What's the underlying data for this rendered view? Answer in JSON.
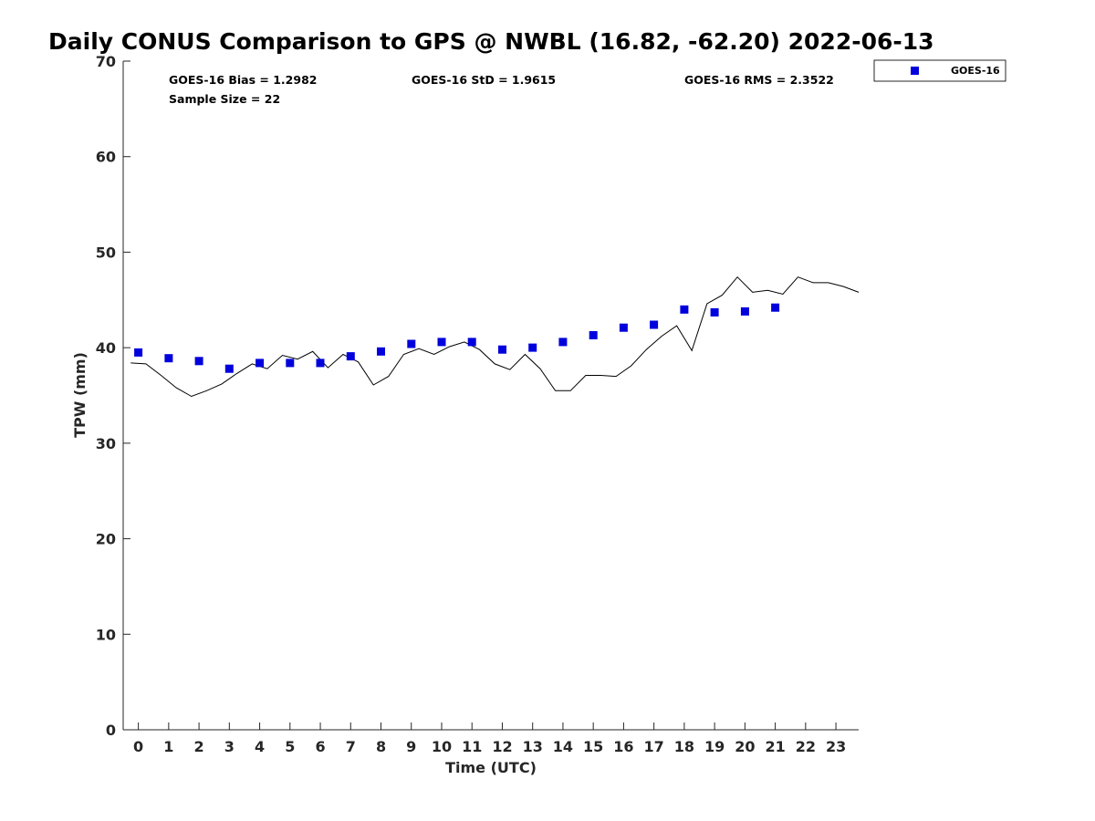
{
  "chart_data": {
    "type": "scatter",
    "title": "Daily CONUS Comparison to GPS @ NWBL (16.82, -62.20) 2022-06-13",
    "xlabel": "Time (UTC)",
    "ylabel": "TPW (mm)",
    "xlim": [
      -0.5,
      23.75
    ],
    "ylim": [
      0,
      70
    ],
    "x_ticks": [
      0,
      1,
      2,
      3,
      4,
      5,
      6,
      7,
      8,
      9,
      10,
      11,
      12,
      13,
      14,
      15,
      16,
      17,
      18,
      19,
      20,
      21,
      22,
      23
    ],
    "x_tick_labels": [
      "0",
      "1",
      "2",
      "3",
      "4",
      "5",
      "6",
      "7",
      "8",
      "9",
      "10",
      "11",
      "12",
      "13",
      "14",
      "15",
      "16",
      "17",
      "18",
      "19",
      "20",
      "21",
      "22",
      "23"
    ],
    "y_ticks": [
      0,
      10,
      20,
      30,
      40,
      50,
      60,
      70
    ],
    "y_tick_labels": [
      "0",
      "10",
      "20",
      "30",
      "40",
      "50",
      "60",
      "70"
    ],
    "grid": false,
    "legend_position": "top-right-outside",
    "stats": {
      "bias": "GOES-16 Bias = 1.2982",
      "std": "GOES-16 StD = 1.9615",
      "rms": "GOES-16 RMS = 2.3522",
      "sample": "Sample Size = 22"
    },
    "series": [
      {
        "name": "GOES-16",
        "kind": "scatter",
        "marker": "square",
        "color": "#0000dd",
        "x": [
          0,
          1,
          2,
          3,
          4,
          5,
          6,
          7,
          8,
          9,
          10,
          11,
          12,
          13,
          14,
          15,
          16,
          17,
          18,
          19,
          20,
          21
        ],
        "y": [
          39.5,
          38.9,
          38.6,
          37.8,
          38.4,
          38.4,
          38.4,
          39.1,
          39.6,
          40.4,
          40.6,
          40.6,
          39.8,
          40.0,
          40.6,
          41.3,
          42.1,
          42.4,
          44.0,
          43.7,
          43.8,
          44.2
        ]
      },
      {
        "kind": "line",
        "color": "#000000",
        "x": [
          -0.25,
          0.25,
          0.75,
          1.25,
          1.75,
          2.25,
          2.75,
          3.25,
          3.75,
          4.25,
          4.75,
          5.25,
          5.75,
          6.25,
          6.75,
          7.25,
          7.75,
          8.25,
          8.75,
          9.25,
          9.75,
          10.25,
          10.75,
          11.25,
          11.75,
          12.25,
          12.75,
          13.25,
          13.75,
          14.25,
          14.75,
          15.25,
          15.75,
          16.25,
          16.75,
          17.25,
          17.75,
          18.25,
          18.75,
          19.25,
          19.75,
          20.25,
          20.75,
          21.25,
          21.75,
          22.25,
          22.75,
          23.25,
          23.75
        ],
        "y": [
          38.4,
          38.3,
          37.1,
          35.8,
          34.9,
          35.5,
          36.2,
          37.3,
          38.3,
          37.8,
          39.2,
          38.8,
          39.6,
          37.9,
          39.3,
          38.5,
          36.1,
          37.0,
          39.3,
          39.9,
          39.3,
          40.1,
          40.6,
          39.8,
          38.3,
          37.7,
          39.3,
          37.8,
          35.5,
          35.5,
          37.1,
          37.1,
          37.0,
          38.1,
          39.8,
          41.2,
          42.3,
          39.7,
          44.6,
          45.5,
          47.4,
          45.8,
          46.0,
          45.6,
          47.4,
          46.8,
          46.8,
          46.4,
          45.8
        ]
      }
    ]
  }
}
